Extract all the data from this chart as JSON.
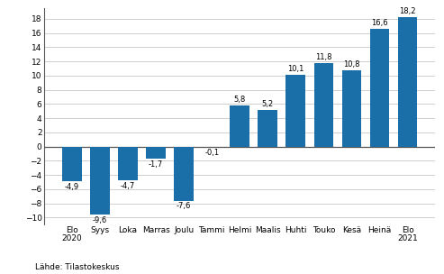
{
  "categories": [
    "Elo\n2020",
    "Syys",
    "Loka",
    "Marras",
    "Joulu",
    "Tammi",
    "Helmi",
    "Maalis",
    "Huhti",
    "Touko",
    "Kesä",
    "Heinä",
    "Elo\n2021"
  ],
  "values": [
    -4.9,
    -9.6,
    -4.7,
    -1.7,
    -7.6,
    -0.1,
    5.8,
    5.2,
    10.1,
    11.8,
    10.8,
    16.6,
    18.2
  ],
  "bar_color_hex": "#1a6fa8",
  "ylim": [
    -11,
    19.5
  ],
  "yticks": [
    -10,
    -8,
    -6,
    -4,
    -2,
    0,
    2,
    4,
    6,
    8,
    10,
    12,
    14,
    16,
    18
  ],
  "source_text": "Lähde: Tilastokeskus",
  "background_color": "#ffffff",
  "grid_color": "#c8c8c8",
  "label_fontsize": 6.0,
  "tick_fontsize": 6.5
}
